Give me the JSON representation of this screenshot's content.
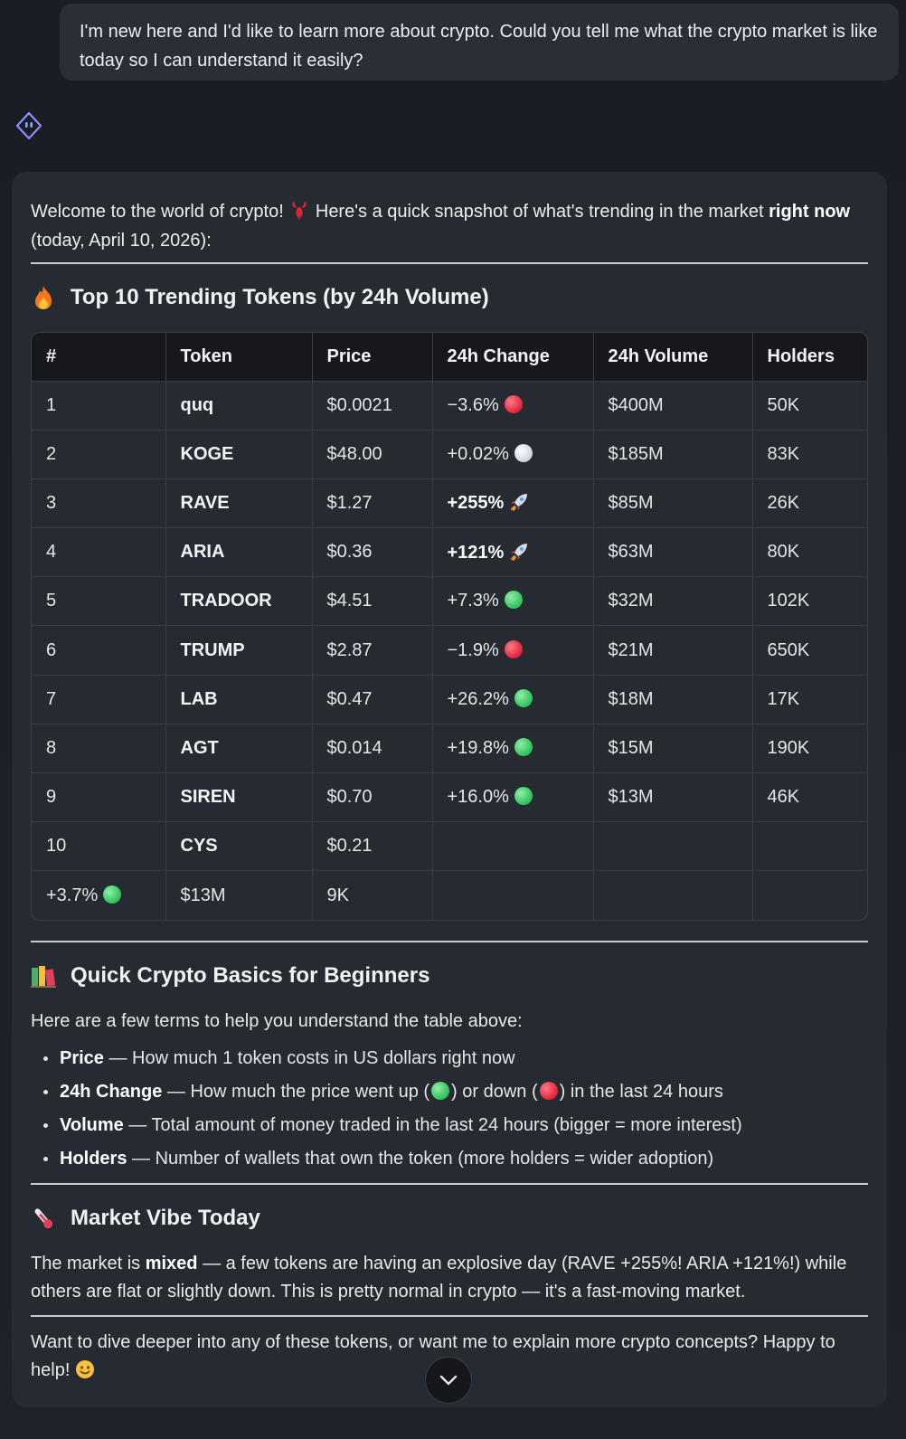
{
  "user_message": "I'm new here and I'd like to learn more about crypto. Could you tell me what the crypto market is like today so I can understand it easily?",
  "answer": {
    "intro_part1": "Welcome to the world of crypto! ",
    "intro_part2": " Here's a quick snapshot of what's trending in the market ",
    "intro_bold": "right now",
    "intro_part3": " (today, April 10, 2026):",
    "table_title": "Top 10 Trending Tokens (by 24h Volume)",
    "table": {
      "headers": [
        "#",
        "Token",
        "Price",
        "24h Change",
        "24h Volume",
        "Holders"
      ],
      "rows": [
        {
          "n": "1",
          "token": "quq",
          "price": "$0.0021",
          "change": "−3.6%",
          "indicator": "red",
          "volume": "$400M",
          "holders": "50K"
        },
        {
          "n": "2",
          "token": "KOGE",
          "price": "$48.00",
          "change": "+0.02%",
          "indicator": "white",
          "volume": "$185M",
          "holders": "83K"
        },
        {
          "n": "3",
          "token": "RAVE",
          "price": "$1.27",
          "change": "+255%",
          "indicator": "rocket",
          "volume": "$85M",
          "holders": "26K"
        },
        {
          "n": "4",
          "token": "ARIA",
          "price": "$0.36",
          "change": "+121%",
          "indicator": "rocket",
          "volume": "$63M",
          "holders": "80K"
        },
        {
          "n": "5",
          "token": "TRADOOR",
          "price": "$4.51",
          "change": "+7.3%",
          "indicator": "green",
          "volume": "$32M",
          "holders": "102K"
        },
        {
          "n": "6",
          "token": "TRUMP",
          "price": "$2.87",
          "change": "−1.9%",
          "indicator": "red",
          "volume": "$21M",
          "holders": "650K"
        },
        {
          "n": "7",
          "token": "LAB",
          "price": "$0.47",
          "change": "+26.2%",
          "indicator": "green",
          "volume": "$18M",
          "holders": "17K"
        },
        {
          "n": "8",
          "token": "AGT",
          "price": "$0.014",
          "change": "+19.8%",
          "indicator": "green",
          "volume": "$15M",
          "holders": "190K"
        },
        {
          "n": "9",
          "token": "SIREN",
          "price": "$0.70",
          "change": "+16.0%",
          "indicator": "green",
          "volume": "$13M",
          "holders": "46K"
        },
        {
          "n": "10",
          "token": "CYS",
          "price": "$0.21",
          "change": "",
          "indicator": "",
          "volume": "",
          "holders": ""
        }
      ],
      "overflow_row": {
        "c1": "+3.7%",
        "c1_indicator": "green",
        "c2": "$13M",
        "c3": "9K"
      }
    },
    "basics_title": "Quick Crypto Basics for Beginners",
    "basics_intro": "Here are a few terms to help you understand the table above:",
    "basics": [
      {
        "term": "Price",
        "desc": " — How much 1 token costs in US dollars right now"
      },
      {
        "term": "24h Change",
        "desc_a": " — How much the price went up (",
        "desc_b": ") or down (",
        "desc_c": ") in the last 24 hours"
      },
      {
        "term": "Volume",
        "desc": " — Total amount of money traded in the last 24 hours (bigger = more interest)"
      },
      {
        "term": "Holders",
        "desc": " — Number of wallets that own the token (more holders = wider adoption)"
      }
    ],
    "vibe_title": "Market Vibe Today",
    "vibe_part1": "The market is ",
    "vibe_bold": "mixed",
    "vibe_part2": " — a few tokens are having an explosive day (RAVE +255%! ARIA +121%!) while others are flat or slightly down. This is pretty normal in crypto — it's a fast-moving market.",
    "closing": "Want to dive deeper into any of these tokens, or want me to explain more crypto concepts? Happy to help! "
  },
  "colors": {
    "background": "#1d2027",
    "card": "#262a31",
    "bubble": "#2a2e36",
    "accent_avatar": "#6b8cff",
    "green": "#2fbf5a",
    "red": "#e0233a"
  },
  "icons": {
    "avatar": "bot-avatar-icon",
    "lobster": "lobster-emoji-icon",
    "fire": "fire-emoji-icon",
    "books": "books-emoji-icon",
    "thermometer": "thermometer-emoji-icon",
    "smile": "smile-emoji-icon",
    "scroll": "chevron-down-icon"
  }
}
